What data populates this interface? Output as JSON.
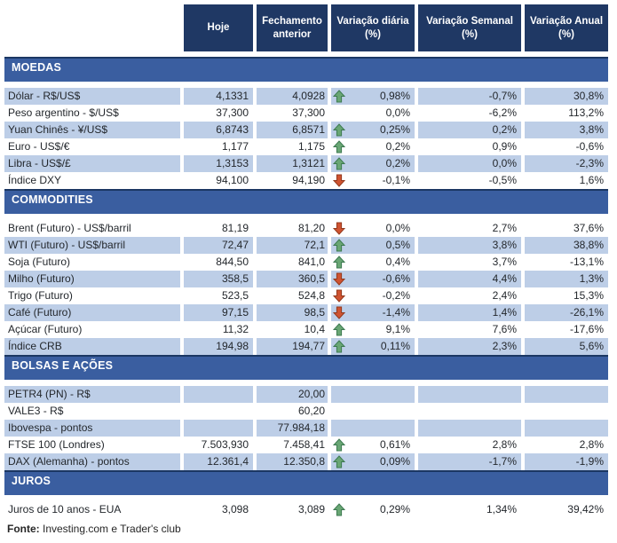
{
  "header": {
    "columns": [
      "Hoje",
      "Fechamento anterior",
      "Variação diária (%)",
      "Variação Semanal (%)",
      "Variação Anual (%)"
    ]
  },
  "sections": [
    {
      "id": "moedas",
      "title": "MOEDAS",
      "rows": [
        {
          "label": "Dólar - R$/US$",
          "hoje": "4,1331",
          "fechamento": "4,0928",
          "arrow": "up",
          "var_diaria": "0,98%",
          "var_semanal": "-0,7%",
          "var_anual": "30,8%",
          "shaded": true
        },
        {
          "label": "Peso argentino - $/US$",
          "hoje": "37,300",
          "fechamento": "37,300",
          "arrow": "",
          "var_diaria": "0,0%",
          "var_semanal": "-6,2%",
          "var_anual": "113,2%",
          "shaded": false
        },
        {
          "label": "Yuan Chinês - ¥/US$",
          "hoje": "6,8743",
          "fechamento": "6,8571",
          "arrow": "up",
          "var_diaria": "0,25%",
          "var_semanal": "0,2%",
          "var_anual": "3,8%",
          "shaded": true
        },
        {
          "label": "Euro - US$/€",
          "hoje": "1,177",
          "fechamento": "1,175",
          "arrow": "up",
          "var_diaria": "0,2%",
          "var_semanal": "0,9%",
          "var_anual": "-0,6%",
          "shaded": false
        },
        {
          "label": "Libra - US$/£",
          "hoje": "1,3153",
          "fechamento": "1,3121",
          "arrow": "up",
          "var_diaria": "0,2%",
          "var_semanal": "0,0%",
          "var_anual": "-2,3%",
          "shaded": true
        },
        {
          "label": "Índice DXY",
          "hoje": "94,100",
          "fechamento": "94,190",
          "arrow": "down",
          "var_diaria": "-0,1%",
          "var_semanal": "-0,5%",
          "var_anual": "1,6%",
          "shaded": false
        }
      ]
    },
    {
      "id": "commodities",
      "title": "COMMODITIES",
      "rows": [
        {
          "label": "Brent (Futuro) - US$/barril",
          "hoje": "81,19",
          "fechamento": "81,20",
          "arrow": "down",
          "var_diaria": "0,0%",
          "var_semanal": "2,7%",
          "var_anual": "37,6%",
          "shaded": false
        },
        {
          "label": "WTI (Futuro) - US$/barril",
          "hoje": "72,47",
          "fechamento": "72,1",
          "arrow": "up",
          "var_diaria": "0,5%",
          "var_semanal": "3,8%",
          "var_anual": "38,8%",
          "shaded": true
        },
        {
          "label": "Soja (Futuro)",
          "hoje": "844,50",
          "fechamento": "841,0",
          "arrow": "up",
          "var_diaria": "0,4%",
          "var_semanal": "3,7%",
          "var_anual": "-13,1%",
          "shaded": false
        },
        {
          "label": "Milho (Futuro)",
          "hoje": "358,5",
          "fechamento": "360,5",
          "arrow": "down",
          "var_diaria": "-0,6%",
          "var_semanal": "4,4%",
          "var_anual": "1,3%",
          "shaded": true
        },
        {
          "label": "Trigo (Futuro)",
          "hoje": "523,5",
          "fechamento": "524,8",
          "arrow": "down",
          "var_diaria": "-0,2%",
          "var_semanal": "2,4%",
          "var_anual": "15,3%",
          "shaded": false
        },
        {
          "label": "Café (Futuro)",
          "hoje": "97,15",
          "fechamento": "98,5",
          "arrow": "down",
          "var_diaria": "-1,4%",
          "var_semanal": "1,4%",
          "var_anual": "-26,1%",
          "shaded": true
        },
        {
          "label": "Açúcar (Futuro)",
          "hoje": "11,32",
          "fechamento": "10,4",
          "arrow": "up",
          "var_diaria": "9,1%",
          "var_semanal": "7,6%",
          "var_anual": "-17,6%",
          "shaded": false
        },
        {
          "label": "Índice CRB",
          "hoje": "194,98",
          "fechamento": "194,77",
          "arrow": "up",
          "var_diaria": "0,11%",
          "var_semanal": "2,3%",
          "var_anual": "5,6%",
          "shaded": true
        }
      ]
    },
    {
      "id": "bolsas-e-acoes",
      "title": "BOLSAS E AÇÕES",
      "rows": [
        {
          "label": "PETR4 (PN) - R$",
          "hoje": "",
          "fechamento": "20,00",
          "arrow": "",
          "var_diaria": "",
          "var_semanal": "",
          "var_anual": "",
          "shaded": true
        },
        {
          "label": "VALE3 - R$",
          "hoje": "",
          "fechamento": "60,20",
          "arrow": "",
          "var_diaria": "",
          "var_semanal": "",
          "var_anual": "",
          "shaded": false
        },
        {
          "label": "Ibovespa - pontos",
          "hoje": "",
          "fechamento": "77.984,18",
          "arrow": "",
          "var_diaria": "",
          "var_semanal": "",
          "var_anual": "",
          "shaded": true
        },
        {
          "label": "FTSE 100 (Londres)",
          "hoje": "7.503,930",
          "fechamento": "7.458,41",
          "arrow": "up",
          "var_diaria": "0,61%",
          "var_semanal": "2,8%",
          "var_anual": "2,8%",
          "shaded": false
        },
        {
          "label": "DAX (Alemanha) - pontos",
          "hoje": "12.361,4",
          "fechamento": "12.350,8",
          "arrow": "up",
          "var_diaria": "0,09%",
          "var_semanal": "-1,7%",
          "var_anual": "-1,9%",
          "shaded": true
        }
      ]
    },
    {
      "id": "juros",
      "title": "JUROS",
      "rows": [
        {
          "label": "Juros de 10 anos - EUA",
          "hoje": "3,098",
          "fechamento": "3,089",
          "arrow": "up",
          "var_diaria": "0,29%",
          "var_semanal": "1,34%",
          "var_anual": "39,42%",
          "shaded": false
        }
      ]
    }
  ],
  "footer": {
    "bold": "Fonte:",
    "text": " Investing.com e Trader's club"
  },
  "colors": {
    "header_bg": "#1F3864",
    "section_bg": "#3A5EA0",
    "section_border": "#1B3763",
    "row_shaded_bg": "#BDCEE7",
    "arrow_up": "#69A674",
    "arrow_down": "#CF5331"
  }
}
